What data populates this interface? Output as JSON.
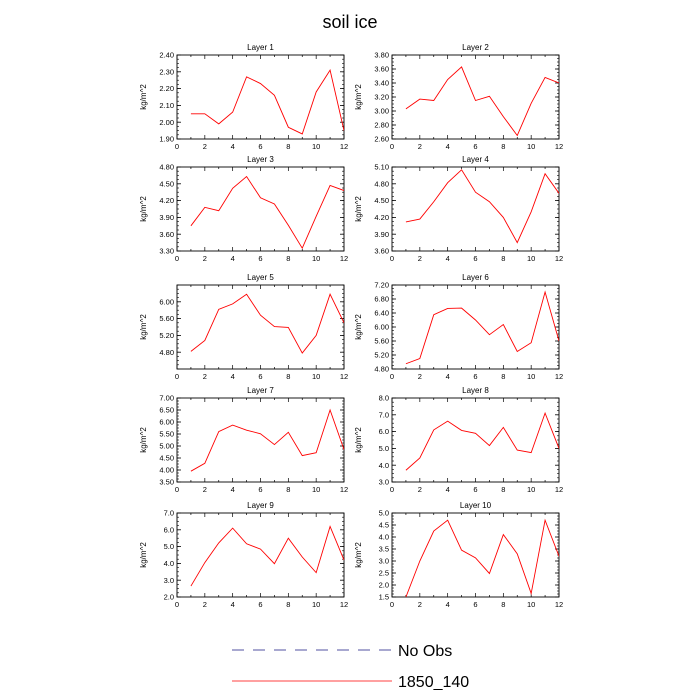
{
  "figure": {
    "title": "soil ice",
    "legend": [
      {
        "name": "No Obs",
        "color": "#5050a0",
        "style": "dashed"
      },
      {
        "name": "1850_140",
        "color": "#ff0000",
        "style": "solid"
      }
    ]
  },
  "chart_data": [
    {
      "type": "line",
      "title": "Layer 1",
      "ylabel": "kg/m^2",
      "xlim": [
        0,
        12
      ],
      "ylim": [
        1.9,
        2.4
      ],
      "yticks": [
        "1.90",
        "2.00",
        "2.10",
        "2.20",
        "2.30",
        "2.40"
      ],
      "x": [
        1,
        2,
        3,
        4,
        5,
        6,
        7,
        8,
        9,
        10,
        11,
        12
      ],
      "series": [
        {
          "name": "1850_140",
          "values": [
            2.05,
            2.05,
            1.99,
            2.06,
            2.27,
            2.23,
            2.16,
            1.97,
            1.93,
            2.18,
            2.31,
            1.95
          ]
        }
      ]
    },
    {
      "type": "line",
      "title": "Layer 2",
      "ylabel": "kg/m^2",
      "xlim": [
        0,
        12
      ],
      "ylim": [
        2.6,
        3.8
      ],
      "yticks": [
        "2.60",
        "2.80",
        "3.00",
        "3.20",
        "3.40",
        "3.60",
        "3.80"
      ],
      "x": [
        1,
        2,
        3,
        4,
        5,
        6,
        7,
        8,
        9,
        10,
        11,
        12
      ],
      "series": [
        {
          "name": "1850_140",
          "values": [
            3.03,
            3.17,
            3.15,
            3.45,
            3.63,
            3.15,
            3.21,
            2.92,
            2.65,
            3.11,
            3.48,
            3.4
          ]
        }
      ]
    },
    {
      "type": "line",
      "title": "Layer 3",
      "ylabel": "kg/m^2",
      "xlim": [
        0,
        12
      ],
      "ylim": [
        3.3,
        4.8
      ],
      "yticks": [
        "3.30",
        "3.60",
        "3.90",
        "4.20",
        "4.50",
        "4.80"
      ],
      "x": [
        1,
        2,
        3,
        4,
        5,
        6,
        7,
        8,
        9,
        10,
        11,
        12
      ],
      "series": [
        {
          "name": "1850_140",
          "values": [
            3.75,
            4.08,
            4.02,
            4.42,
            4.63,
            4.25,
            4.14,
            3.76,
            3.35,
            3.92,
            4.47,
            4.38
          ]
        }
      ]
    },
    {
      "type": "line",
      "title": "Layer 4",
      "ylabel": "kg/m^2",
      "xlim": [
        0,
        12
      ],
      "ylim": [
        3.6,
        5.1
      ],
      "yticks": [
        "3.60",
        "3.90",
        "4.20",
        "4.50",
        "4.80",
        "5.10"
      ],
      "x": [
        1,
        2,
        3,
        4,
        5,
        6,
        7,
        8,
        9,
        10,
        11,
        12
      ],
      "series": [
        {
          "name": "1850_140",
          "values": [
            4.12,
            4.17,
            4.48,
            4.82,
            5.05,
            4.65,
            4.48,
            4.2,
            3.75,
            4.3,
            4.98,
            4.63
          ]
        }
      ]
    },
    {
      "type": "line",
      "title": "Layer 5",
      "ylabel": "kg/m^2",
      "xlim": [
        0,
        12
      ],
      "ylim": [
        4.4,
        6.4
      ],
      "yticks": [
        "4.80",
        "5.20",
        "5.60",
        "6.00"
      ],
      "x": [
        1,
        2,
        3,
        4,
        5,
        6,
        7,
        8,
        9,
        10,
        11,
        12
      ],
      "series": [
        {
          "name": "1850_140",
          "values": [
            4.82,
            5.08,
            5.82,
            5.95,
            6.18,
            5.68,
            5.41,
            5.39,
            4.78,
            5.2,
            6.18,
            5.5
          ]
        }
      ]
    },
    {
      "type": "line",
      "title": "Layer 6",
      "ylabel": "kg/m^2",
      "xlim": [
        0,
        12
      ],
      "ylim": [
        4.8,
        7.2
      ],
      "yticks": [
        "4.80",
        "5.20",
        "5.60",
        "6.00",
        "6.40",
        "6.80",
        "7.20"
      ],
      "x": [
        1,
        2,
        3,
        4,
        5,
        6,
        7,
        8,
        9,
        10,
        11,
        12
      ],
      "series": [
        {
          "name": "1850_140",
          "values": [
            4.95,
            5.1,
            6.35,
            6.53,
            6.54,
            6.2,
            5.78,
            6.07,
            5.3,
            5.55,
            7.0,
            5.6
          ]
        }
      ]
    },
    {
      "type": "line",
      "title": "Layer 7",
      "ylabel": "kg/m^2",
      "xlim": [
        0,
        12
      ],
      "ylim": [
        3.5,
        7.0
      ],
      "yticks": [
        "3.50",
        "4.00",
        "4.50",
        "5.00",
        "5.50",
        "6.00",
        "6.50",
        "7.00"
      ],
      "x": [
        1,
        2,
        3,
        4,
        5,
        6,
        7,
        8,
        9,
        10,
        11,
        12
      ],
      "series": [
        {
          "name": "1850_140",
          "values": [
            3.95,
            4.28,
            5.6,
            5.87,
            5.66,
            5.51,
            5.06,
            5.57,
            4.6,
            4.72,
            6.5,
            4.85
          ]
        }
      ]
    },
    {
      "type": "line",
      "title": "Layer 8",
      "ylabel": "kg/m^2",
      "xlim": [
        0,
        12
      ],
      "ylim": [
        3.0,
        8.0
      ],
      "yticks": [
        "3.0",
        "4.0",
        "5.0",
        "6.0",
        "7.0",
        "8.0"
      ],
      "x": [
        1,
        2,
        3,
        4,
        5,
        6,
        7,
        8,
        9,
        10,
        11,
        12
      ],
      "series": [
        {
          "name": "1850_140",
          "values": [
            3.7,
            4.43,
            6.1,
            6.62,
            6.07,
            5.9,
            5.17,
            6.25,
            4.9,
            4.75,
            7.1,
            5.0
          ]
        }
      ]
    },
    {
      "type": "line",
      "title": "Layer 9",
      "ylabel": "kg/m^2",
      "xlim": [
        0,
        12
      ],
      "ylim": [
        2.0,
        7.0
      ],
      "yticks": [
        "2.0",
        "3.0",
        "4.0",
        "5.0",
        "6.0",
        "7.0"
      ],
      "x": [
        1,
        2,
        3,
        4,
        5,
        6,
        7,
        8,
        9,
        10,
        11,
        12
      ],
      "series": [
        {
          "name": "1850_140",
          "values": [
            2.65,
            4.05,
            5.22,
            6.1,
            5.17,
            4.85,
            3.98,
            5.5,
            4.38,
            3.45,
            6.2,
            4.2
          ]
        }
      ]
    },
    {
      "type": "line",
      "title": "Layer 10",
      "ylabel": "kg/m^2",
      "xlim": [
        0,
        12
      ],
      "ylim": [
        1.5,
        5.0
      ],
      "yticks": [
        "1.5",
        "2.0",
        "2.5",
        "3.0",
        "3.5",
        "4.0",
        "4.5",
        "5.0"
      ],
      "x": [
        1,
        2,
        3,
        4,
        5,
        6,
        7,
        8,
        9,
        10,
        11,
        12
      ],
      "series": [
        {
          "name": "1850_140",
          "values": [
            1.5,
            3.0,
            4.25,
            4.7,
            3.45,
            3.13,
            2.48,
            4.1,
            3.3,
            1.65,
            4.7,
            3.2
          ]
        }
      ]
    }
  ],
  "x_ticks": [
    "0",
    "2",
    "4",
    "6",
    "8",
    "10",
    "12"
  ]
}
